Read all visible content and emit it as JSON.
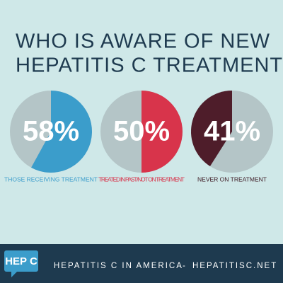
{
  "title": [
    "WHO IS AWARE OF NEW",
    "HEPATITIS C TREATMENTS?"
  ],
  "chart_data": [
    {
      "type": "pie",
      "values": [
        58
      ],
      "value_labels": [
        "58%"
      ],
      "caption": "THOSE RECEIVING TREATMENT",
      "color": "#3b9dcb",
      "direction": "clockwise"
    },
    {
      "type": "pie",
      "values": [
        50
      ],
      "value_labels": [
        "50%"
      ],
      "caption": "TREATED IN PAST/NOT ON TREATMENT",
      "color": "#d8344b",
      "direction": "clockwise"
    },
    {
      "type": "pie",
      "values": [
        41
      ],
      "value_labels": [
        "41%"
      ],
      "caption": "NEVER ON TREATMENT",
      "color": "#4e1d2a",
      "direction": "counterclockwise"
    }
  ],
  "footer": {
    "logo": "HEP C",
    "tagline": "HEPATITIS C IN AMERICA",
    "separator": "-",
    "site": "HEPATITISC.NET"
  }
}
